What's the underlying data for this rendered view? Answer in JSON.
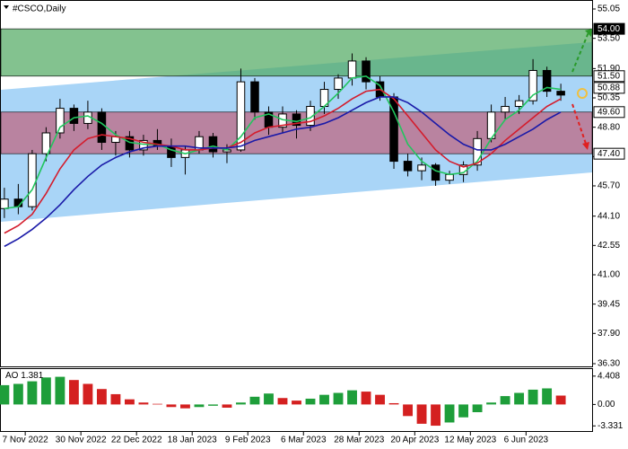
{
  "chart_data": [
    {
      "type": "candlestick",
      "title": "#CSCO,Daily",
      "x": [
        -6,
        -2,
        2,
        6,
        10,
        14,
        18,
        22,
        26,
        30,
        34,
        38,
        42,
        46,
        50,
        54,
        58,
        62,
        66,
        70,
        74,
        78,
        82,
        86,
        90,
        94,
        98,
        102,
        106,
        110,
        114,
        118,
        122,
        126,
        130,
        134,
        138,
        142,
        146,
        150,
        154
      ],
      "open": [
        44.5,
        45.0,
        44.6,
        47.4,
        48.5,
        49.8,
        49.0,
        49.6,
        48.0,
        48.3,
        47.6,
        48.1,
        47.8,
        47.2,
        47.6,
        48.3,
        47.5,
        47.6,
        51.2,
        49.6,
        48.8,
        49.5,
        48.9,
        49.9,
        50.8,
        51.4,
        52.3,
        51.2,
        50.4,
        47.0,
        46.5,
        46.8,
        46.0,
        46.3,
        46.8,
        48.2,
        49.6,
        49.9,
        50.2,
        51.8,
        50.7
      ],
      "high": [
        45.6,
        45.8,
        47.6,
        48.8,
        50.3,
        50.0,
        50.2,
        49.8,
        48.6,
        48.6,
        48.4,
        48.7,
        48.2,
        47.8,
        48.6,
        48.5,
        47.9,
        51.9,
        51.4,
        49.9,
        49.9,
        49.7,
        50.2,
        51.2,
        51.6,
        52.7,
        52.5,
        51.5,
        50.6,
        47.4,
        47.2,
        46.9,
        46.5,
        47.0,
        48.6,
        50.0,
        50.4,
        50.5,
        52.4,
        52.0,
        51.1
      ],
      "low": [
        44.0,
        44.2,
        44.4,
        47.0,
        48.2,
        48.6,
        48.7,
        47.6,
        47.3,
        47.2,
        47.3,
        47.6,
        46.7,
        46.3,
        47.4,
        47.2,
        46.9,
        47.5,
        49.2,
        48.4,
        48.5,
        48.2,
        48.6,
        49.5,
        50.3,
        51.0,
        50.8,
        50.2,
        46.6,
        46.2,
        46.0,
        45.7,
        45.8,
        45.9,
        46.5,
        48.0,
        49.2,
        49.5,
        50.0,
        50.4,
        50.2
      ],
      "close": [
        45.0,
        44.6,
        47.4,
        48.5,
        49.8,
        49.0,
        49.6,
        48.0,
        48.3,
        47.6,
        48.1,
        47.8,
        47.2,
        47.6,
        48.3,
        47.5,
        47.6,
        51.2,
        49.6,
        48.8,
        49.5,
        48.9,
        49.9,
        50.8,
        51.4,
        52.3,
        51.2,
        50.4,
        47.0,
        46.5,
        46.8,
        46.0,
        46.3,
        46.8,
        48.2,
        49.6,
        49.9,
        50.2,
        51.8,
        50.7,
        50.5
      ],
      "up_color": "#ffffff",
      "down_color": "#000000",
      "series": [
        {
          "color": "#22c55e",
          "values": [
            44.5,
            44.6,
            45.5,
            47.2,
            48.8,
            49.3,
            49.4,
            49.0,
            48.4,
            48.0,
            47.9,
            47.9,
            47.6,
            47.4,
            47.6,
            47.8,
            47.6,
            48.3,
            49.3,
            49.5,
            49.2,
            49.1,
            49.3,
            49.9,
            50.6,
            51.4,
            51.5,
            51.0,
            49.6,
            47.9,
            47.0,
            46.5,
            46.3,
            46.4,
            47.0,
            48.2,
            49.2,
            49.7,
            50.5,
            50.9,
            50.8
          ]
        },
        {
          "color": "#d41c2c",
          "values": [
            43.2,
            43.6,
            44.2,
            45.3,
            46.6,
            47.6,
            48.2,
            48.4,
            48.3,
            48.2,
            48.0,
            47.9,
            47.8,
            47.6,
            47.6,
            47.7,
            47.7,
            48.0,
            48.5,
            48.8,
            48.9,
            49.0,
            49.1,
            49.4,
            49.8,
            50.3,
            50.7,
            50.8,
            50.3,
            49.4,
            48.5,
            47.6,
            47.0,
            46.7,
            46.9,
            47.4,
            48.1,
            48.7,
            49.3,
            49.9,
            50.3
          ]
        },
        {
          "color": "#1a1aa8",
          "values": [
            42.5,
            42.9,
            43.4,
            44.0,
            44.7,
            45.5,
            46.2,
            46.8,
            47.2,
            47.5,
            47.7,
            47.8,
            47.8,
            47.8,
            47.7,
            47.7,
            47.7,
            47.8,
            48.1,
            48.3,
            48.5,
            48.7,
            48.8,
            49.0,
            49.3,
            49.7,
            50.1,
            50.4,
            50.4,
            50.1,
            49.6,
            49.0,
            48.4,
            47.9,
            47.6,
            47.6,
            47.9,
            48.3,
            48.7,
            49.2,
            49.6
          ]
        }
      ],
      "channel": {
        "x": [
          -7,
          163
        ],
        "upper": [
          50.78,
          53.3
        ],
        "lower": [
          43.8,
          46.41
        ],
        "color": "#a9d5f7"
      },
      "zones": [
        {
          "from": 51.5,
          "to": 54.0,
          "color": "#4fa860"
        },
        {
          "from": 47.4,
          "to": 49.6,
          "color": "#c0607a"
        }
      ],
      "levels": [
        {
          "value": 54.0,
          "label": "54.00",
          "dark": true
        },
        {
          "value": 51.5,
          "label": "51.50",
          "dark": false
        },
        {
          "value": 50.88,
          "label": "50.88",
          "dark": false
        },
        {
          "value": 49.6,
          "label": "49.60",
          "dark": false
        },
        {
          "value": 47.4,
          "label": "47.40",
          "dark": false
        }
      ],
      "xlim": [
        -7,
        163
      ],
      "xticks": [
        {
          "value": 0,
          "label": "7 Nov 2022"
        },
        {
          "value": 16,
          "label": "30 Nov 2022"
        },
        {
          "value": 32,
          "label": "22 Dec 2022"
        },
        {
          "value": 48,
          "label": "18 Jan 2023"
        },
        {
          "value": 64,
          "label": "9 Feb 2023"
        },
        {
          "value": 80,
          "label": "6 Mar 2023"
        },
        {
          "value": 96,
          "label": "28 Mar 2023"
        },
        {
          "value": 112,
          "label": "20 Apr 2023"
        },
        {
          "value": 128,
          "label": "12 May 2023"
        },
        {
          "value": 144,
          "label": "6 Jun 2023"
        }
      ],
      "ylim": [
        36.3,
        55.05
      ],
      "yticks": [
        55.05,
        {
          "value": 53.5,
          "label": "53.50"
        },
        {
          "value": 51.9,
          "label": "51.90"
        },
        50.35,
        {
          "value": 48.8,
          "label": "48.80"
        },
        47.25,
        {
          "value": 45.7,
          "label": "45.70"
        },
        {
          "value": 44.1,
          "label": "44.10"
        },
        42.55,
        {
          "value": 41.0,
          "label": "41.00"
        },
        39.45,
        {
          "value": 37.9,
          "label": "37.90"
        },
        {
          "value": 36.3,
          "label": "36.30"
        }
      ]
    },
    {
      "type": "bar",
      "name": "AO",
      "values": [
        3.0,
        3.2,
        3.6,
        4.2,
        4.3,
        3.8,
        3.2,
        2.4,
        1.6,
        0.8,
        0.3,
        0.1,
        -0.4,
        -0.6,
        -0.4,
        -0.2,
        -0.5,
        0.3,
        1.2,
        1.7,
        1.0,
        0.6,
        0.9,
        1.5,
        1.8,
        2.2,
        2.0,
        1.5,
        0.2,
        -1.8,
        -3.0,
        -3.3,
        -2.8,
        -2.0,
        -1.2,
        0.3,
        1.3,
        1.8,
        2.3,
        2.5,
        1.381
      ],
      "up_color": "#1e9e3a",
      "down_color": "#d42020",
      "ylim": [
        -4.13,
        5.5
      ],
      "yticks": [
        4.408,
        {
          "value": 0,
          "label": "0.00"
        },
        -3.331
      ]
    }
  ]
}
